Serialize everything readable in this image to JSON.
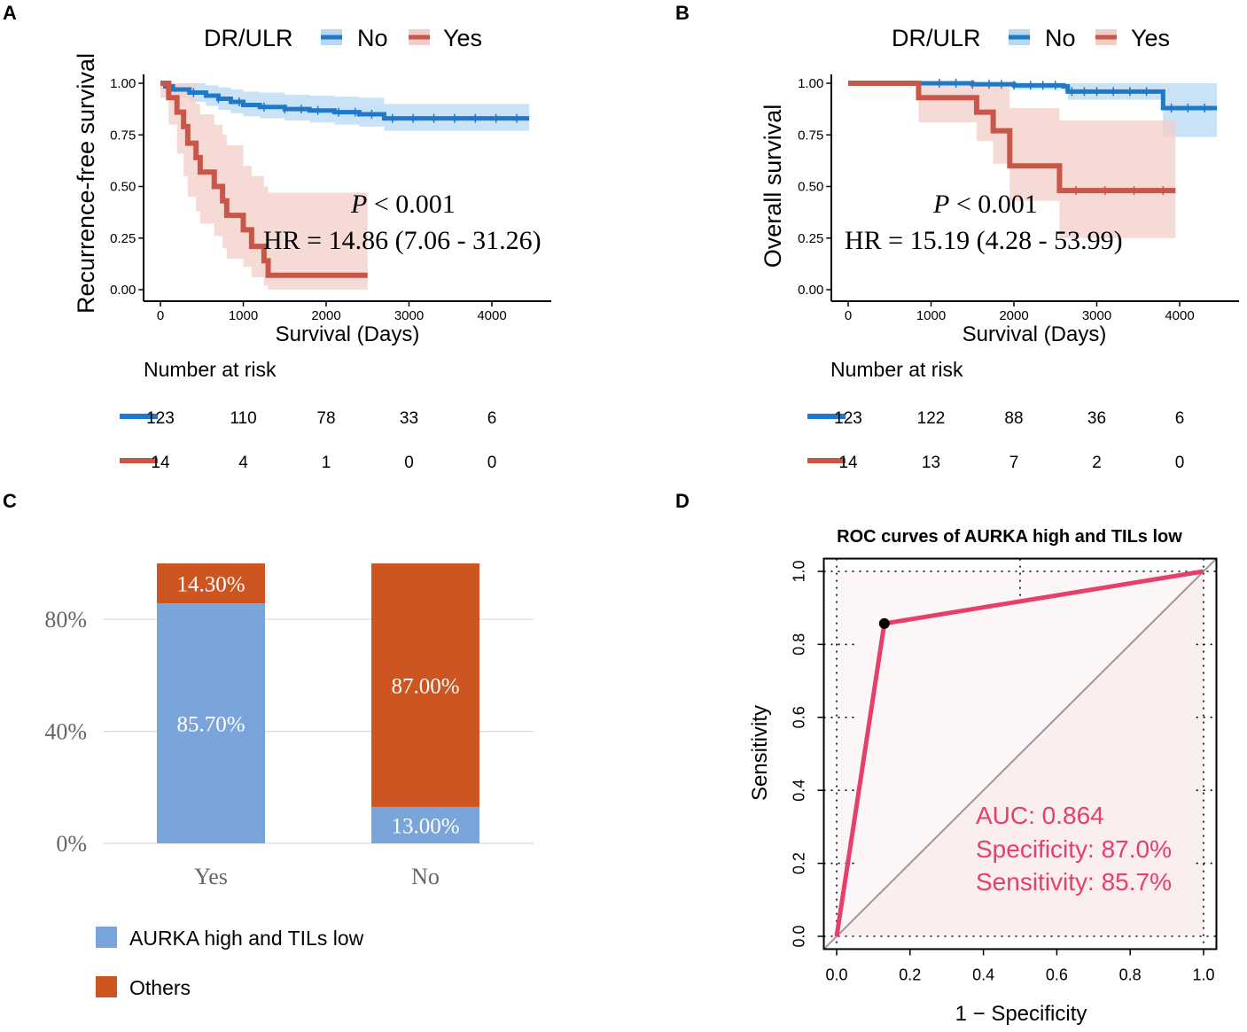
{
  "colors": {
    "no_line": "#1f78c8",
    "no_band": "#b8d8f2",
    "yes_line": "#c8574a",
    "yes_band": "#f3cdc8",
    "bar_blue": "#7aa5db",
    "bar_orange": "#cc5522",
    "roc_line": "#e6406a",
    "roc_text": "#e6406a",
    "grid": "#d9d9d9"
  },
  "chart_data": [
    {
      "panel": "A",
      "type": "line",
      "subtype": "kaplan-meier",
      "legend_title": "DR/ULR",
      "legend_entries": [
        "No",
        "Yes"
      ],
      "ylabel": "Recurrence-free survival",
      "xlabel": "Survival (Days)",
      "xticks": [
        "0",
        "1000",
        "2000",
        "3000",
        "4000"
      ],
      "yticks": [
        "0.00",
        "0.25",
        "0.50",
        "0.75",
        "1.00"
      ],
      "xlim": [
        -200,
        4700
      ],
      "ylim": [
        -0.05,
        1.05
      ],
      "annotation_p_italic": "P",
      "annotation_p_rest": " < 0.001",
      "annotation_hr": "HR = 14.86 (7.06 - 31.26)",
      "series": [
        {
          "name": "No",
          "steps": [
            [
              0,
              1.0
            ],
            [
              60,
              0.985
            ],
            [
              150,
              0.97
            ],
            [
              350,
              0.955
            ],
            [
              550,
              0.94
            ],
            [
              700,
              0.925
            ],
            [
              850,
              0.91
            ],
            [
              1000,
              0.895
            ],
            [
              1200,
              0.885
            ],
            [
              1500,
              0.875
            ],
            [
              1800,
              0.868
            ],
            [
              2100,
              0.86
            ],
            [
              2400,
              0.85
            ],
            [
              2700,
              0.84
            ],
            [
              2700,
              0.83
            ],
            [
              4450,
              0.83
            ]
          ],
          "lower": [
            0.97,
            0.95,
            0.93,
            0.91,
            0.89,
            0.87,
            0.855,
            0.84,
            0.83,
            0.82,
            0.81,
            0.8,
            0.79,
            0.78,
            0.77,
            0.77
          ],
          "upper": [
            1.0,
            1.0,
            1.0,
            1.0,
            0.99,
            0.98,
            0.97,
            0.96,
            0.955,
            0.945,
            0.94,
            0.935,
            0.93,
            0.92,
            0.9,
            0.9
          ],
          "censor_x": [
            400,
            700,
            950,
            1250,
            1500,
            1700,
            1900,
            2150,
            2350,
            2550,
            2800,
            3050,
            3300,
            3550,
            3800,
            4050,
            4300
          ]
        },
        {
          "name": "Yes",
          "steps": [
            [
              0,
              1.0
            ],
            [
              100,
              0.93
            ],
            [
              200,
              0.86
            ],
            [
              280,
              0.79
            ],
            [
              330,
              0.71
            ],
            [
              430,
              0.64
            ],
            [
              480,
              0.57
            ],
            [
              650,
              0.5
            ],
            [
              750,
              0.43
            ],
            [
              800,
              0.36
            ],
            [
              1000,
              0.29
            ],
            [
              1100,
              0.21
            ],
            [
              1250,
              0.14
            ],
            [
              1300,
              0.07
            ],
            [
              2500,
              0.07
            ]
          ],
          "lower": [
            0.93,
            0.8,
            0.66,
            0.55,
            0.45,
            0.38,
            0.32,
            0.26,
            0.2,
            0.15,
            0.11,
            0.06,
            0.02,
            0.0,
            0.0
          ],
          "upper": [
            1.0,
            1.0,
            1.0,
            1.0,
            1.0,
            0.9,
            0.85,
            0.8,
            0.75,
            0.7,
            0.6,
            0.55,
            0.5,
            0.47,
            0.47
          ],
          "censor_x": []
        }
      ],
      "risk_table_title": "Number at risk",
      "risk_rows": [
        {
          "name": "No",
          "values": [
            "123",
            "110",
            "78",
            "33",
            "6"
          ]
        },
        {
          "name": "Yes",
          "values": [
            "14",
            "4",
            "1",
            "0",
            "0"
          ]
        }
      ]
    },
    {
      "panel": "B",
      "type": "line",
      "subtype": "kaplan-meier",
      "legend_title": "DR/ULR",
      "legend_entries": [
        "No",
        "Yes"
      ],
      "ylabel": "Overall survival",
      "xlabel": "Survival (Days)",
      "xticks": [
        "0",
        "1000",
        "2000",
        "3000",
        "4000"
      ],
      "yticks": [
        "0.00",
        "0.25",
        "0.50",
        "0.75",
        "1.00"
      ],
      "xlim": [
        -200,
        4700
      ],
      "ylim": [
        -0.05,
        1.05
      ],
      "annotation_p_italic": "P",
      "annotation_p_rest": " < 0.001",
      "annotation_hr": "HR = 15.19 (4.28 - 53.99)",
      "series": [
        {
          "name": "No",
          "steps": [
            [
              0,
              1.0
            ],
            [
              1500,
              0.995
            ],
            [
              2000,
              0.99
            ],
            [
              2600,
              0.985
            ],
            [
              2650,
              0.96
            ],
            [
              3800,
              0.96
            ],
            [
              3800,
              0.88
            ],
            [
              4450,
              0.88
            ]
          ],
          "lower": [
            1.0,
            0.985,
            0.97,
            0.96,
            0.92,
            0.92,
            0.74,
            0.74
          ],
          "upper": [
            1.0,
            1.0,
            1.0,
            1.0,
            1.0,
            1.0,
            1.0,
            1.0
          ],
          "censor_x": [
            1100,
            1300,
            1500,
            1700,
            1850,
            2000,
            2200,
            2350,
            2500,
            2700,
            2850,
            3000,
            3200,
            3400,
            3600,
            3900,
            4100,
            4300
          ]
        },
        {
          "name": "Yes",
          "steps": [
            [
              0,
              1.0
            ],
            [
              850,
              0.93
            ],
            [
              1550,
              0.86
            ],
            [
              1750,
              0.77
            ],
            [
              1950,
              0.6
            ],
            [
              2550,
              0.48
            ],
            [
              3950,
              0.48
            ]
          ],
          "lower": [
            1.0,
            0.81,
            0.72,
            0.61,
            0.43,
            0.25,
            0.25
          ],
          "upper": [
            1.0,
            1.0,
            1.0,
            1.0,
            0.88,
            0.82,
            0.82
          ],
          "censor_x": [
            2750,
            3100,
            3450,
            3800
          ]
        }
      ],
      "risk_table_title": "Number at risk",
      "risk_rows": [
        {
          "name": "No",
          "values": [
            "123",
            "122",
            "88",
            "36",
            "6"
          ]
        },
        {
          "name": "Yes",
          "values": [
            "14",
            "13",
            "7",
            "2",
            "0"
          ]
        }
      ]
    },
    {
      "panel": "C",
      "type": "bar",
      "stacked": true,
      "percent": true,
      "categories": [
        "Yes",
        "No"
      ],
      "series": [
        {
          "name": "AURKA high and TILs low",
          "values": [
            85.7,
            13.0
          ],
          "labels": [
            "85.70%",
            "13.00%"
          ]
        },
        {
          "name": "Others",
          "values": [
            14.3,
            87.0
          ],
          "labels": [
            "14.30%",
            "87.00%"
          ]
        }
      ],
      "yticks": [
        "0%",
        "40%",
        "80%"
      ],
      "ytick_values": [
        0,
        40,
        80
      ],
      "ylim": [
        0,
        100
      ]
    },
    {
      "panel": "D",
      "type": "line",
      "subtype": "roc",
      "title": "ROC curves of AURKA high and TILs low",
      "xlabel": "1 − Specificity",
      "ylabel": "Sensitivity",
      "xticks": [
        "0.0",
        "0.2",
        "0.4",
        "0.6",
        "0.8",
        "1.0"
      ],
      "yticks": [
        "0.0",
        "0.2",
        "0.4",
        "0.6",
        "0.8",
        "1.0"
      ],
      "xlim": [
        -0.035,
        1.035
      ],
      "ylim": [
        -0.035,
        1.035
      ],
      "points": [
        [
          0,
          0
        ],
        [
          0.13,
          0.857
        ],
        [
          1,
          1
        ]
      ],
      "best_point": [
        0.13,
        0.857
      ],
      "auc_text": "AUC: 0.864",
      "spec_text": "Specificity: 87.0%",
      "sens_text": "Sensitivity: 85.7%"
    }
  ]
}
